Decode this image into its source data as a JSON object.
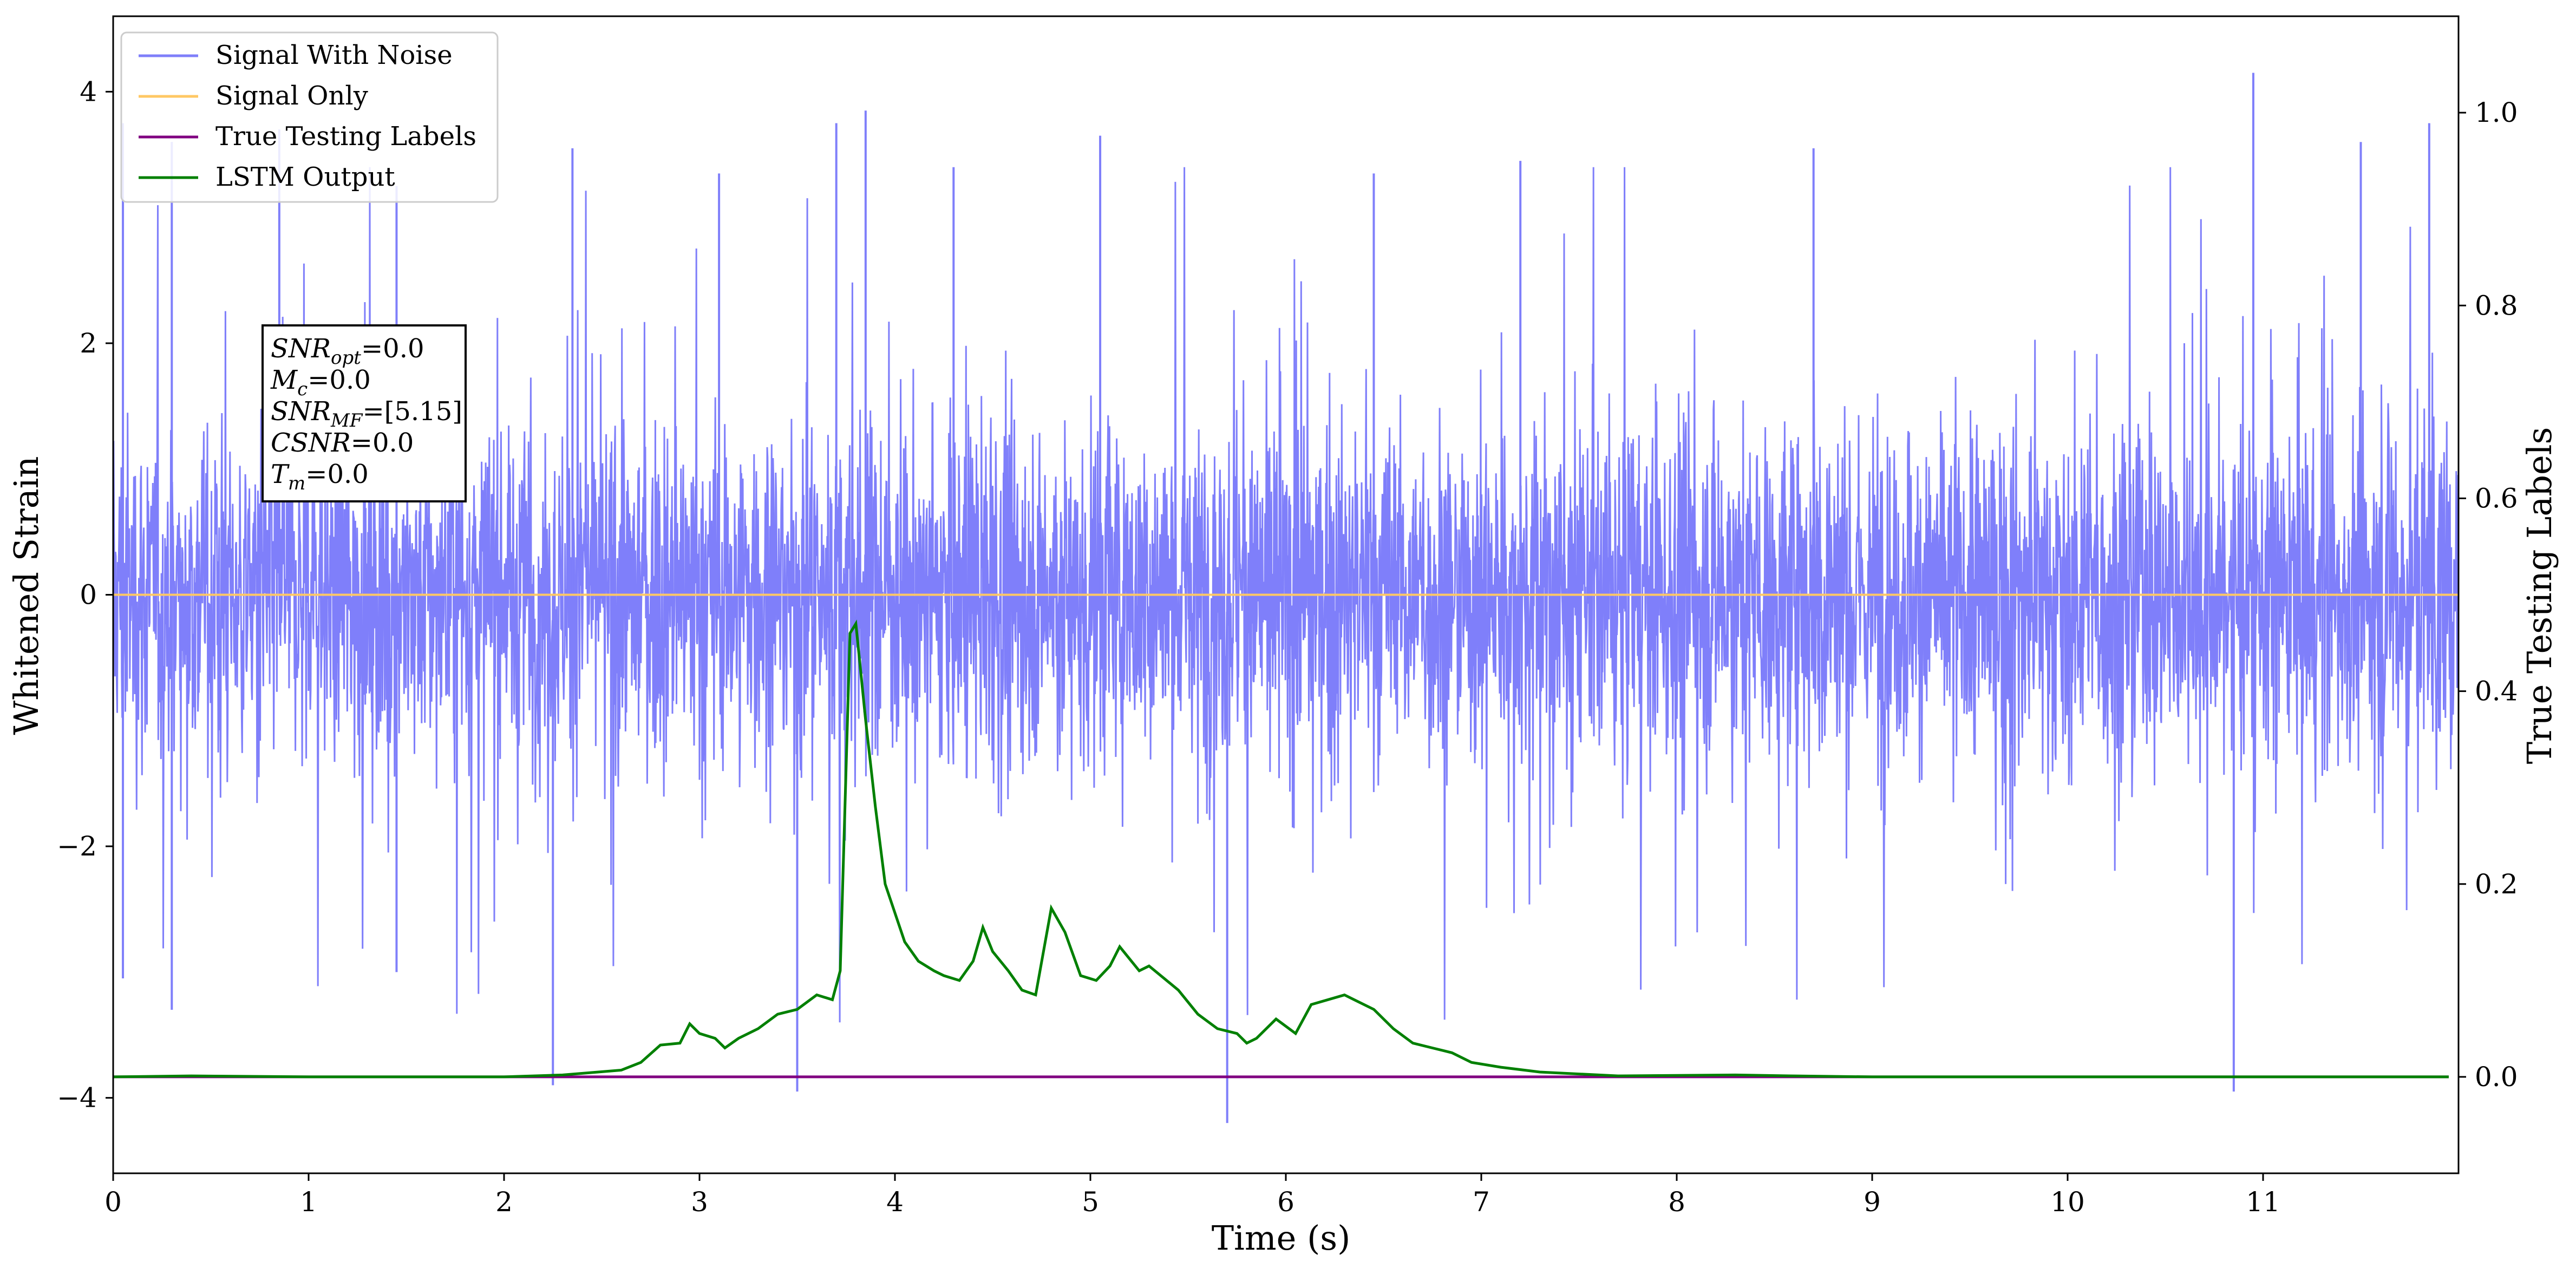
{
  "chart_data": {
    "type": "line",
    "xlabel": "Time (s)",
    "ylabel": "Whitened Strain",
    "y2label": "True Testing Labels",
    "xlim": [
      0,
      12
    ],
    "ylim": [
      -4.6,
      4.6
    ],
    "y2lim": [
      -0.1,
      1.1
    ],
    "x_ticks": [
      0,
      1,
      2,
      3,
      4,
      5,
      6,
      7,
      8,
      9,
      10,
      11
    ],
    "y_ticks": [
      -4,
      -2,
      0,
      2,
      4
    ],
    "y_tick_labels": [
      "−4",
      "−2",
      "0",
      "2",
      "4"
    ],
    "y2_ticks": [
      0.0,
      0.2,
      0.4,
      0.6,
      0.8,
      1.0
    ],
    "y2_tick_labels": [
      "0.0",
      "0.2",
      "0.4",
      "0.6",
      "0.8",
      "1.0"
    ],
    "legend_position": "upper-left",
    "grid": false,
    "series": [
      {
        "name": "Signal With Noise",
        "color": "#7f7ffa",
        "axis": "left",
        "description_values": "dense noise, approx. -1.0 to 1.0 band with spikes from about -4.2 to 4.2",
        "spikes": [
          {
            "x": 0.05,
            "y": 3.75
          },
          {
            "x": 0.05,
            "y": -3.05
          },
          {
            "x": 0.3,
            "y": 3.6
          },
          {
            "x": 0.3,
            "y": -3.3
          },
          {
            "x": 0.85,
            "y": 3.7
          },
          {
            "x": 1.45,
            "y": 3.25
          },
          {
            "x": 1.45,
            "y": -3.0
          },
          {
            "x": 2.25,
            "y": -3.9
          },
          {
            "x": 2.35,
            "y": 3.55
          },
          {
            "x": 3.1,
            "y": 3.35
          },
          {
            "x": 3.5,
            "y": -3.95
          },
          {
            "x": 3.7,
            "y": 3.75
          },
          {
            "x": 3.85,
            "y": 3.85
          },
          {
            "x": 4.3,
            "y": 3.4
          },
          {
            "x": 5.05,
            "y": 3.65
          },
          {
            "x": 5.7,
            "y": -4.2
          },
          {
            "x": 6.45,
            "y": 3.35
          },
          {
            "x": 7.2,
            "y": 3.45
          },
          {
            "x": 8.7,
            "y": 3.55
          },
          {
            "x": 10.85,
            "y": -3.95
          },
          {
            "x": 10.95,
            "y": 4.15
          },
          {
            "x": 11.5,
            "y": 3.6
          },
          {
            "x": 11.85,
            "y": 3.75
          }
        ]
      },
      {
        "name": "Signal Only",
        "color": "#ffc864",
        "axis": "left",
        "x": [
          0,
          12
        ],
        "y": [
          0.0,
          0.0
        ]
      },
      {
        "name": "True Testing Labels",
        "color": "#800080",
        "axis": "right",
        "x": [
          0,
          11.95
        ],
        "y": [
          0.0,
          0.0
        ]
      },
      {
        "name": "LSTM Output",
        "color": "#008000",
        "axis": "right",
        "x": [
          0,
          0.4,
          1.0,
          2.0,
          2.3,
          2.6,
          2.7,
          2.8,
          2.9,
          2.95,
          3.0,
          3.08,
          3.13,
          3.2,
          3.3,
          3.4,
          3.5,
          3.6,
          3.68,
          3.72,
          3.77,
          3.8,
          3.85,
          3.9,
          3.95,
          4.05,
          4.12,
          4.2,
          4.25,
          4.33,
          4.4,
          4.45,
          4.5,
          4.58,
          4.65,
          4.72,
          4.8,
          4.87,
          4.95,
          5.03,
          5.1,
          5.15,
          5.25,
          5.3,
          5.45,
          5.55,
          5.65,
          5.75,
          5.8,
          5.85,
          5.95,
          6.05,
          6.13,
          6.3,
          6.35,
          6.45,
          6.55,
          6.65,
          6.75,
          6.85,
          6.95,
          7.1,
          7.3,
          7.7,
          8.3,
          8.6,
          9.0,
          10.0,
          11.0,
          11.95
        ],
        "y": [
          0.0,
          0.001,
          0.0,
          0.0,
          0.002,
          0.007,
          0.015,
          0.033,
          0.035,
          0.055,
          0.045,
          0.04,
          0.03,
          0.04,
          0.05,
          0.065,
          0.07,
          0.085,
          0.08,
          0.11,
          0.46,
          0.47,
          0.37,
          0.28,
          0.2,
          0.14,
          0.12,
          0.11,
          0.105,
          0.1,
          0.12,
          0.155,
          0.13,
          0.11,
          0.09,
          0.085,
          0.175,
          0.15,
          0.105,
          0.1,
          0.115,
          0.135,
          0.11,
          0.115,
          0.09,
          0.065,
          0.05,
          0.045,
          0.035,
          0.04,
          0.06,
          0.045,
          0.075,
          0.085,
          0.08,
          0.07,
          0.05,
          0.035,
          0.03,
          0.025,
          0.015,
          0.01,
          0.005,
          0.001,
          0.002,
          0.001,
          0.0,
          0.0,
          0.0,
          0.0
        ]
      }
    ],
    "annotation_lines": [
      {
        "base": "SNR",
        "sub": "opt",
        "rest": "=0.0"
      },
      {
        "base": "M",
        "sub": "c",
        "rest": "=0.0"
      },
      {
        "base": "SNR",
        "sub": "MF",
        "rest": "=[5.15]"
      },
      {
        "base": "CSNR",
        "sub": "",
        "rest": "=0.0"
      },
      {
        "base": "T",
        "sub": "m",
        "rest": "=0.0"
      }
    ]
  }
}
